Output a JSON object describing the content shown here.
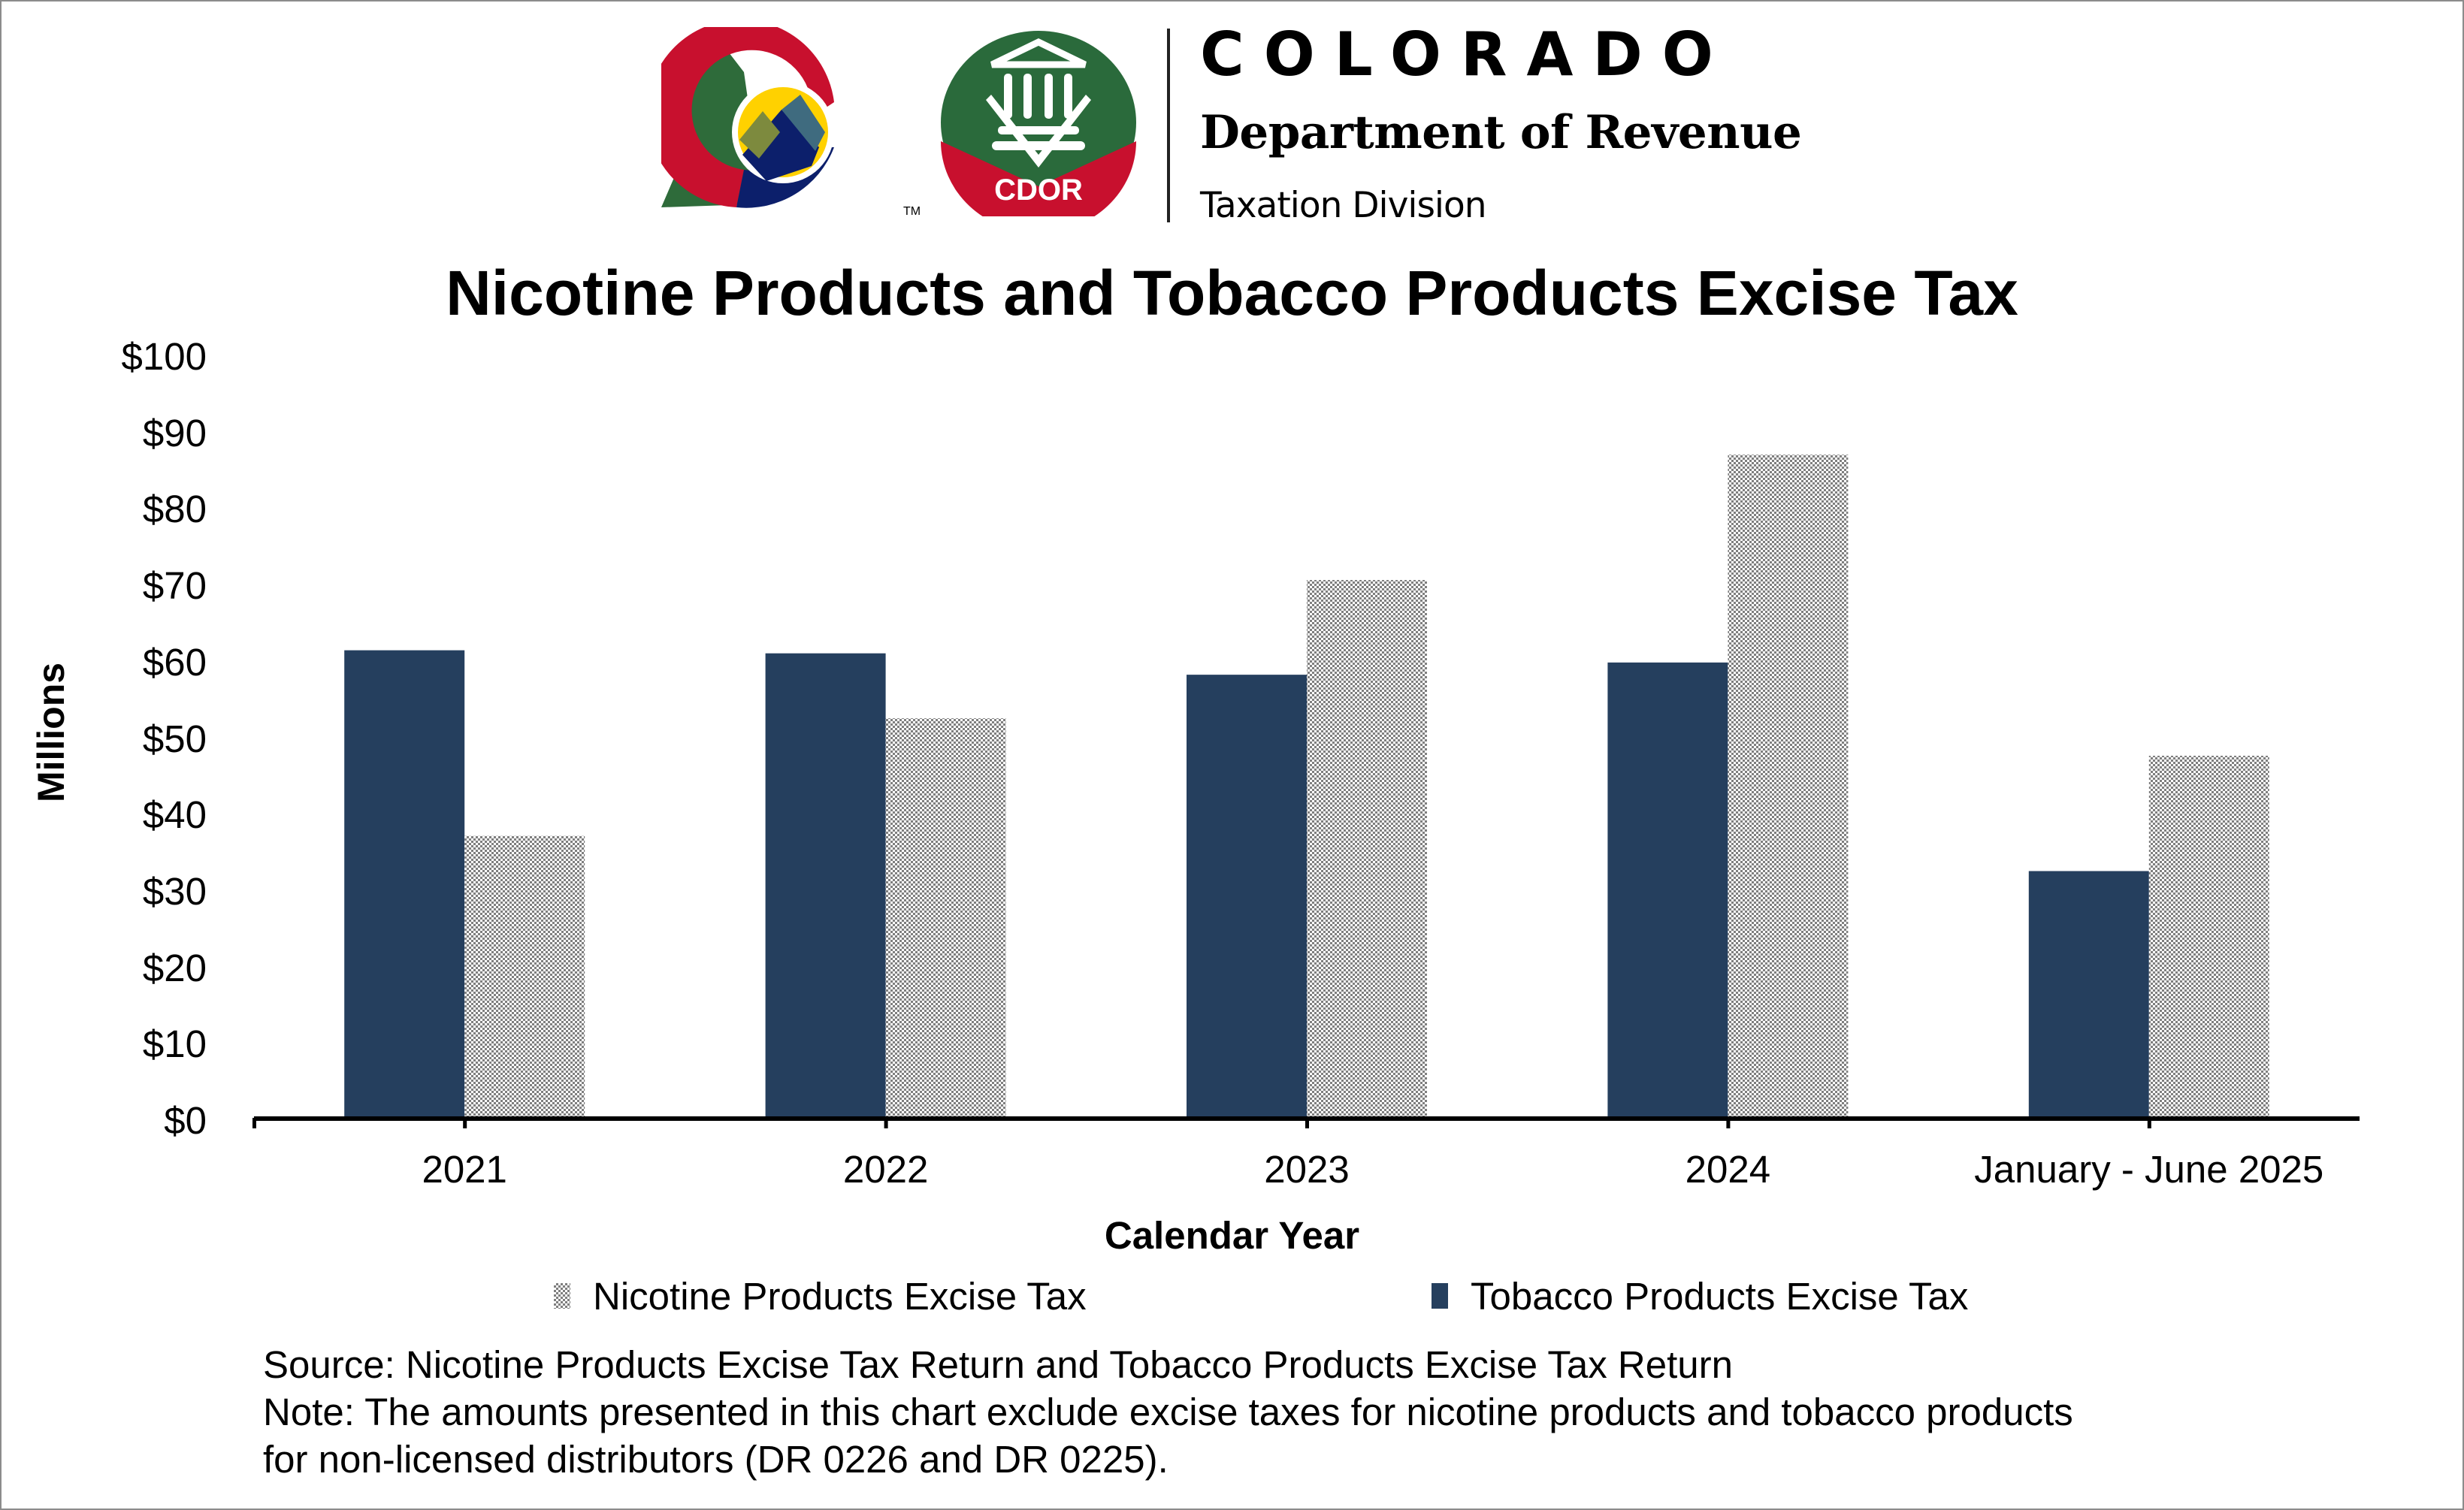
{
  "header": {
    "brand_name": "COLORADO",
    "department": "Department of Revenue",
    "division": "Taxation Division",
    "badge_text": "CDOR",
    "trademark": "TM",
    "colors": {
      "tree_green": "#2e6b3a",
      "c_red": "#c8102e",
      "c_blue": "#0c1f6b",
      "sun_yellow": "#ffd100",
      "badge_green": "#2a6a3b",
      "badge_red": "#c8102e"
    }
  },
  "chart_data": {
    "type": "bar",
    "title": "Nicotine Products and Tobacco Products Excise Tax",
    "xlabel": "Calendar Year",
    "ylabel": "Millions",
    "ylim": [
      0,
      100
    ],
    "yticks": [
      0,
      10,
      20,
      30,
      40,
      50,
      60,
      70,
      80,
      90,
      100
    ],
    "ytick_labels": [
      "$0",
      "$10",
      "$20",
      "$30",
      "$40",
      "$50",
      "$60",
      "$70",
      "$80",
      "$90",
      "$100"
    ],
    "grid": false,
    "categories": [
      "2021",
      "2022",
      "2023",
      "2024",
      "January - June 2025"
    ],
    "series": [
      {
        "name": "Tobacco Products Excise Tax",
        "color": "#253f5e",
        "pattern": "solid",
        "values": [
          61.2,
          60.8,
          58.0,
          59.6,
          32.3
        ]
      },
      {
        "name": "Nicotine Products Excise Tax",
        "color": "#7f7f7f",
        "pattern": "checker",
        "values": [
          36.9,
          52.3,
          70.4,
          86.8,
          47.4
        ]
      }
    ],
    "legend": {
      "position": "bottom",
      "items": [
        {
          "label": "Nicotine Products Excise Tax",
          "pattern": "checker"
        },
        {
          "label": "Tobacco Products Excise Tax",
          "pattern": "solid"
        }
      ]
    }
  },
  "footer": {
    "source": "Source: Nicotine Products Excise Tax Return and Tobacco Products Excise Tax Return",
    "note_line1": "Note: The amounts presented in this chart exclude excise taxes for nicotine products and tobacco products",
    "note_line2": "for non-licensed distributors (DR 0226 and DR 0225)."
  }
}
